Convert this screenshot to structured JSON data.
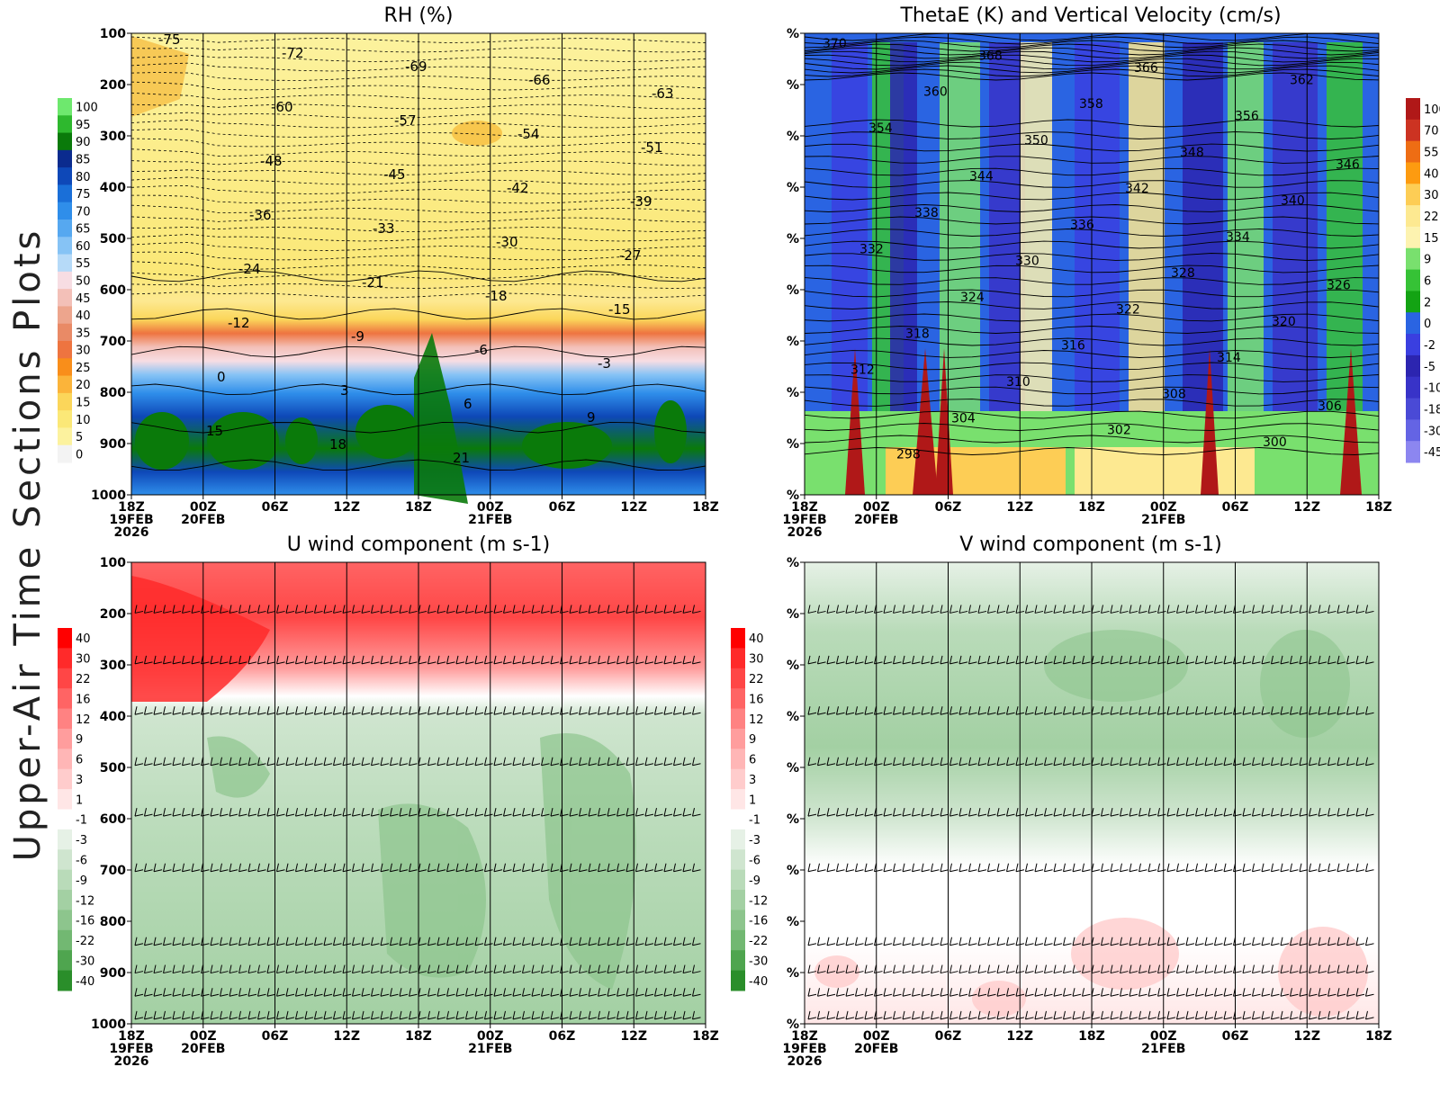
{
  "page_label": "Upper-Air Time Sections Plots",
  "time_axis": {
    "ticks": [
      "18Z",
      "00Z",
      "06Z",
      "12Z",
      "18Z",
      "00Z",
      "06Z",
      "12Z",
      "18Z"
    ],
    "dates": [
      "19FEB",
      "20FEB",
      "",
      "",
      "",
      "21FEB",
      "",
      "",
      ""
    ],
    "year": "2026"
  },
  "chart_data": [
    {
      "type": "heatmap",
      "title": "RH (%)",
      "y_ticks": [
        "100",
        "200",
        "300",
        "400",
        "500",
        "600",
        "700",
        "800",
        "900",
        "1000"
      ],
      "colorbar": {
        "side": "left",
        "labels": [
          "100",
          "95",
          "90",
          "85",
          "80",
          "75",
          "70",
          "65",
          "60",
          "55",
          "50",
          "45",
          "40",
          "35",
          "30",
          "25",
          "20",
          "15",
          "10",
          "5",
          "0"
        ],
        "colors": [
          "#6ee86e",
          "#2eb82e",
          "#0a7a0a",
          "#0b2b8e",
          "#0e48b8",
          "#1a6fd8",
          "#2f8eea",
          "#56a8f0",
          "#86c3f5",
          "#b6daf8",
          "#f7dde3",
          "#f3c0b8",
          "#eda58d",
          "#e98a66",
          "#ee7440",
          "#f98e1a",
          "#fbb43a",
          "#fbd65a",
          "#fbe877",
          "#fcf29e",
          "#f3f3f3"
        ]
      },
      "contour_labels": [
        "-75",
        "-72",
        "-69",
        "-66",
        "-63",
        "-60",
        "-57",
        "-54",
        "-51",
        "-48",
        "-45",
        "-42",
        "-39",
        "-36",
        "-33",
        "-30",
        "-27",
        "-24",
        "-21",
        "-18",
        "-15",
        "-12",
        "-9",
        "-6",
        "-3",
        "0",
        "3",
        "6",
        "9",
        "15",
        "18",
        "21"
      ]
    },
    {
      "type": "heatmap",
      "title": "ThetaE (K) and Vertical Velocity (cm/s)",
      "y_ticks": [
        "%",
        "%",
        "%",
        "%",
        "%",
        "%",
        "%",
        "%",
        "%",
        "%"
      ],
      "colorbar": {
        "side": "right",
        "labels": [
          "100",
          "70",
          "55",
          "40",
          "30",
          "22",
          "15",
          "9",
          "6",
          "2",
          "0",
          "-2",
          "-5",
          "-10",
          "-18",
          "-30",
          "-45"
        ],
        "colors": [
          "#b01818",
          "#cc3322",
          "#ee6d14",
          "#fd9b10",
          "#fdcd55",
          "#fde991",
          "#fdf3b0",
          "#79e06e",
          "#36c236",
          "#13a313",
          "#2a64e2",
          "#3a3fe0",
          "#2c25b0",
          "#3833c8",
          "#4a4ad6",
          "#6464e4",
          "#8c86f0"
        ]
      },
      "contour_labels": [
        "370",
        "368",
        "366",
        "362",
        "360",
        "358",
        "356",
        "354",
        "350",
        "348",
        "346",
        "344",
        "342",
        "340",
        "338",
        "336",
        "334",
        "332",
        "330",
        "328",
        "326",
        "324",
        "322",
        "320",
        "318",
        "316",
        "314",
        "312",
        "310",
        "308",
        "306",
        "304",
        "302",
        "300",
        "298"
      ]
    },
    {
      "type": "heatmap",
      "title": "U wind component (m s-1)",
      "y_ticks": [
        "100",
        "200",
        "300",
        "400",
        "500",
        "600",
        "700",
        "800",
        "900",
        "1000"
      ],
      "colorbar": {
        "side": "left",
        "labels": [
          "40",
          "30",
          "22",
          "16",
          "12",
          "9",
          "6",
          "3",
          "1",
          "-1",
          "-3",
          "-6",
          "-9",
          "-12",
          "-16",
          "-22",
          "-30",
          "-40"
        ],
        "colors": [
          "#ff0000",
          "#ff2a2a",
          "#ff4646",
          "#ff6464",
          "#ff8282",
          "#ff9d9d",
          "#ffb6b6",
          "#ffcccc",
          "#ffe6e6",
          "#ffffff",
          "#e6f1e6",
          "#cfe5cf",
          "#b9dbb9",
          "#a3d0a3",
          "#8dc58d",
          "#72b872",
          "#4fa54f",
          "#2a8e2a"
        ]
      }
    },
    {
      "type": "heatmap",
      "title": "V wind component (m s-1)",
      "y_ticks": [
        "%",
        "%",
        "%",
        "%",
        "%",
        "%",
        "%",
        "%",
        "%",
        "%"
      ],
      "colorbar": {
        "side": "left",
        "labels": [
          "40",
          "30",
          "22",
          "16",
          "12",
          "9",
          "6",
          "3",
          "1",
          "-1",
          "-3",
          "-6",
          "-9",
          "-12",
          "-16",
          "-22",
          "-30",
          "-40"
        ],
        "colors": [
          "#ff0000",
          "#ff2a2a",
          "#ff4646",
          "#ff6464",
          "#ff8282",
          "#ff9d9d",
          "#ffb6b6",
          "#ffcccc",
          "#ffe6e6",
          "#ffffff",
          "#e6f1e6",
          "#cfe5cf",
          "#b9dbb9",
          "#a3d0a3",
          "#8dc58d",
          "#72b872",
          "#4fa54f",
          "#2a8e2a"
        ]
      }
    }
  ]
}
